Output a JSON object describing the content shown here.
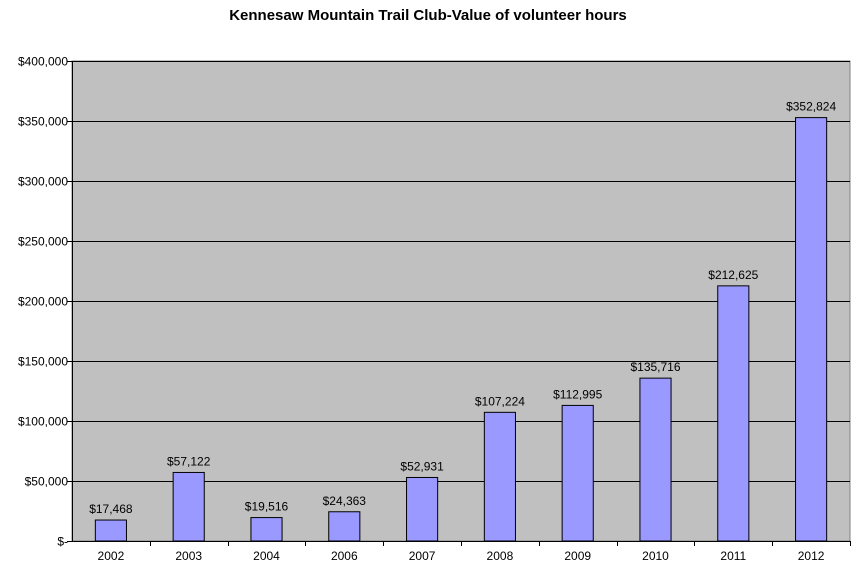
{
  "chart_data": {
    "type": "bar",
    "title": "Kennesaw Mountain Trail Club-Value of volunteer hours",
    "xlabel": "",
    "ylabel": "",
    "categories": [
      "2002",
      "2003",
      "2004",
      "2006",
      "2007",
      "2008",
      "2009",
      "2010",
      "2011",
      "2012"
    ],
    "values": [
      17468,
      57122,
      19516,
      24363,
      52931,
      107224,
      112995,
      135716,
      212625,
      352824
    ],
    "data_labels": [
      "$17,468",
      "$57,122",
      "$19,516",
      "$24,363",
      "$52,931",
      "$107,224",
      "$112,995",
      "$135,716",
      "$212,625",
      "$352,824"
    ],
    "ylim": [
      0,
      400000
    ],
    "yticks": [
      0,
      50000,
      100000,
      150000,
      200000,
      250000,
      300000,
      350000,
      400000
    ],
    "ytick_labels": [
      "$-",
      "$50,000",
      "$100,000",
      "$150,000",
      "$200,000",
      "$250,000",
      "$300,000",
      "$350,000",
      "$400,000"
    ],
    "grid": true,
    "legend": "none",
    "colors": {
      "bar_fill": "#9999ff",
      "bar_stroke": "#000000",
      "plot_background": "#c0c0c0",
      "gridline": "#000000"
    }
  }
}
